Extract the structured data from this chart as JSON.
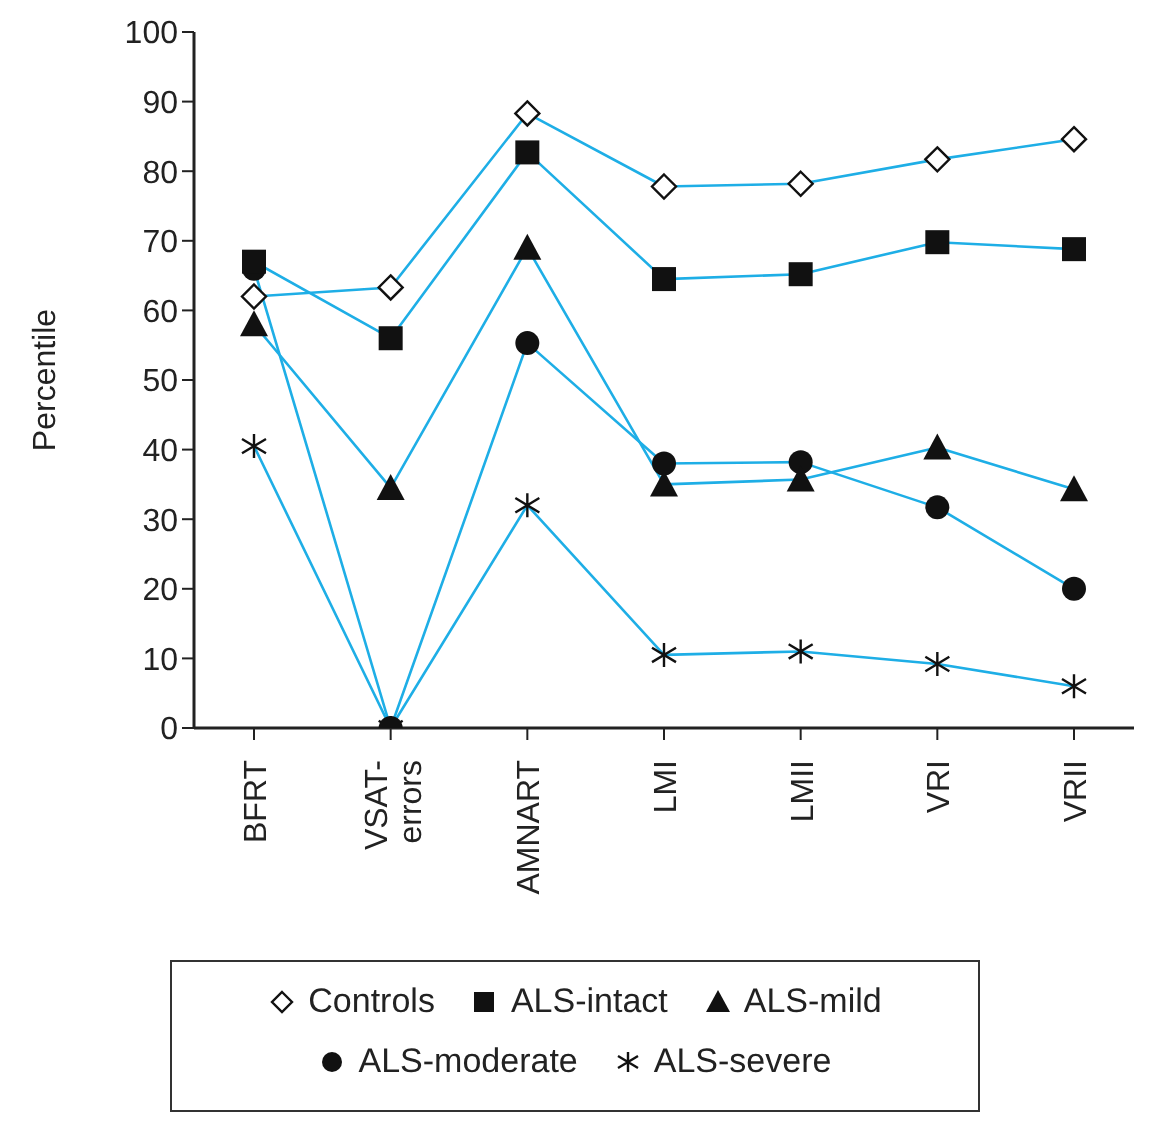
{
  "chart_data": {
    "type": "line",
    "ylabel": "Percentile",
    "categories": [
      "BFRT",
      "VSAT-errors",
      "AMNART",
      "LMI",
      "LMII",
      "VRI",
      "VRII"
    ],
    "ylim": [
      0,
      100
    ],
    "yticks": [
      0,
      10,
      20,
      30,
      40,
      50,
      60,
      70,
      80,
      90,
      100
    ],
    "grid": false,
    "legend": "bottom",
    "series": [
      {
        "name": "Controls",
        "color": "#1eaee6",
        "marker": "diamond",
        "values": [
          62,
          63.3,
          88.3,
          77.8,
          78.2,
          81.7,
          84.6
        ]
      },
      {
        "name": "ALS-intact",
        "color": "#1eaee6",
        "marker": "square",
        "values": [
          67,
          56,
          82.7,
          64.5,
          65.2,
          69.8,
          68.8
        ]
      },
      {
        "name": "ALS-mild",
        "color": "#1eaee6",
        "marker": "triangle",
        "values": [
          58,
          34.5,
          69,
          35,
          35.7,
          40.3,
          34.3
        ]
      },
      {
        "name": "ALS-moderate",
        "color": "#1eaee6",
        "marker": "circle",
        "values": [
          66,
          0,
          55.3,
          38,
          38.2,
          31.7,
          20
        ]
      },
      {
        "name": "ALS-severe",
        "color": "#1eaee6",
        "marker": "cross",
        "values": [
          40.5,
          0,
          32,
          10.5,
          11,
          9.2,
          6
        ]
      }
    ]
  }
}
